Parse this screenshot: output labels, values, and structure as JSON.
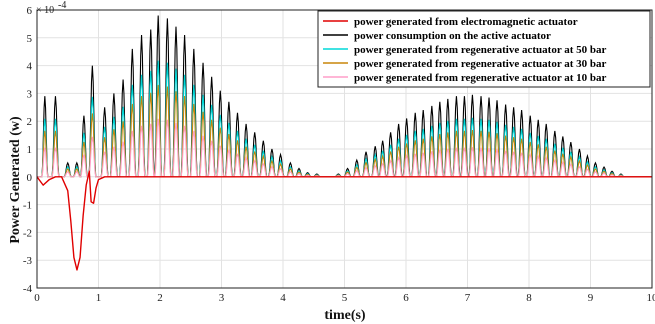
{
  "chart_data": {
    "type": "line",
    "xlabel": "time(s)",
    "ylabel": "Power Generated (w)",
    "exponent_base": "× 10",
    "exponent_power": "-4",
    "xlim": [
      0,
      10
    ],
    "ylim": [
      -4,
      6
    ],
    "xticks": [
      "0",
      "1",
      "2",
      "3",
      "4",
      "5",
      "6",
      "7",
      "8",
      "9",
      "10"
    ],
    "yticks": [
      "-4",
      "-3",
      "-2",
      "-1",
      "0",
      "1",
      "2",
      "3",
      "4",
      "5",
      "6"
    ],
    "grid": true,
    "legend_position": "top-right",
    "series": [
      {
        "name": "power generated from electromagnetic actuator",
        "color": "#e00000",
        "points": [
          [
            0,
            0
          ],
          [
            0.1,
            -0.3
          ],
          [
            0.2,
            -0.1
          ],
          [
            0.3,
            0
          ],
          [
            0.4,
            0
          ],
          [
            0.5,
            -0.5
          ],
          [
            0.55,
            -1.6
          ],
          [
            0.6,
            -2.9
          ],
          [
            0.65,
            -3.35
          ],
          [
            0.7,
            -2.9
          ],
          [
            0.75,
            -1.4
          ],
          [
            0.8,
            -0.3
          ],
          [
            0.85,
            0.2
          ],
          [
            0.88,
            -0.9
          ],
          [
            0.92,
            -0.95
          ],
          [
            0.96,
            -0.4
          ],
          [
            1.0,
            -0.1
          ],
          [
            1.1,
            0
          ],
          [
            10,
            0
          ]
        ]
      },
      {
        "name": "power consumption on the active actuator",
        "color": "#000000",
        "peaks": [
          [
            0.12,
            2.9
          ],
          [
            0.3,
            2.9
          ],
          [
            0.5,
            0.5
          ],
          [
            0.65,
            0.5
          ],
          [
            0.76,
            2.2
          ],
          [
            0.9,
            4.0
          ],
          [
            1.1,
            2.5
          ],
          [
            1.25,
            3.0
          ],
          [
            1.4,
            3.5
          ],
          [
            1.55,
            4.6
          ],
          [
            1.7,
            5.1
          ],
          [
            1.85,
            5.3
          ],
          [
            1.97,
            5.8
          ],
          [
            2.12,
            5.7
          ],
          [
            2.26,
            5.4
          ],
          [
            2.4,
            5.1
          ],
          [
            2.55,
            4.6
          ],
          [
            2.7,
            4.1
          ],
          [
            2.84,
            3.6
          ],
          [
            2.98,
            3.1
          ],
          [
            3.12,
            2.7
          ],
          [
            3.26,
            2.3
          ],
          [
            3.4,
            1.9
          ],
          [
            3.54,
            1.6
          ],
          [
            3.68,
            1.3
          ],
          [
            3.82,
            1.0
          ],
          [
            3.96,
            0.8
          ],
          [
            4.12,
            0.5
          ],
          [
            4.26,
            0.3
          ],
          [
            4.4,
            0.15
          ],
          [
            4.55,
            0.1
          ],
          [
            4.9,
            0.1
          ],
          [
            5.05,
            0.3
          ],
          [
            5.2,
            0.6
          ],
          [
            5.35,
            0.9
          ],
          [
            5.5,
            1.1
          ],
          [
            5.62,
            1.3
          ],
          [
            5.75,
            1.6
          ],
          [
            5.88,
            1.9
          ],
          [
            6.01,
            2.1
          ],
          [
            6.15,
            2.3
          ],
          [
            6.28,
            2.4
          ],
          [
            6.42,
            2.55
          ],
          [
            6.55,
            2.7
          ],
          [
            6.68,
            2.8
          ],
          [
            6.82,
            2.9
          ],
          [
            6.95,
            2.9
          ],
          [
            7.08,
            2.95
          ],
          [
            7.22,
            2.9
          ],
          [
            7.35,
            2.85
          ],
          [
            7.48,
            2.75
          ],
          [
            7.62,
            2.6
          ],
          [
            7.75,
            2.5
          ],
          [
            7.88,
            2.4
          ],
          [
            8.02,
            2.2
          ],
          [
            8.15,
            2.05
          ],
          [
            8.28,
            1.9
          ],
          [
            8.42,
            1.65
          ],
          [
            8.55,
            1.45
          ],
          [
            8.68,
            1.25
          ],
          [
            8.82,
            1.0
          ],
          [
            8.95,
            0.75
          ],
          [
            9.08,
            0.5
          ],
          [
            9.22,
            0.35
          ],
          [
            9.35,
            0.2
          ],
          [
            9.5,
            0.1
          ]
        ]
      },
      {
        "name": "power generated from regenerative actuator  at 50 bar",
        "color": "#00d8d8",
        "ratio": 0.72
      },
      {
        "name": "power generated from regenerative actuator  at 30 bar",
        "color": "#c8860a",
        "ratio": 0.57
      },
      {
        "name": "power generated from regenerative actuator  at 10 bar",
        "color": "#ff9ec8",
        "ratio": 0.36
      }
    ]
  }
}
